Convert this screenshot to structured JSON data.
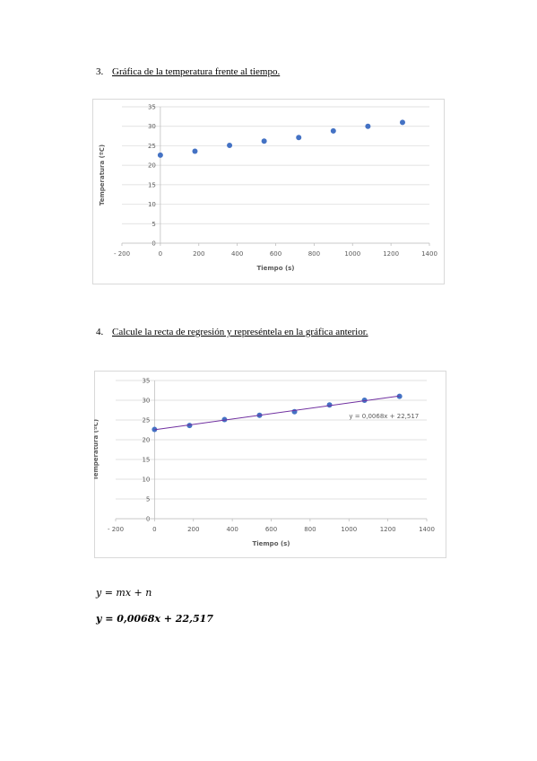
{
  "sections": [
    {
      "number": "3.",
      "heading": "Gráfica de la temperatura frente al tiempo."
    },
    {
      "number": "4.",
      "heading": "Calcule la recta de regresión y represéntela en la gráfica anterior."
    }
  ],
  "chart_data": [
    {
      "type": "scatter",
      "x_label": "Tiempo (s)",
      "y_label": "Temperatura (ºC)",
      "color": "#4472c4",
      "x": [
        0,
        180,
        360,
        540,
        720,
        900,
        1080,
        1260
      ],
      "values": [
        22.6,
        23.6,
        25.1,
        26.2,
        27.1,
        28.8,
        30.0,
        31.0
      ],
      "xlim": [
        -200,
        1400
      ],
      "xticks": [
        {
          "value": -200,
          "label": "- 200"
        },
        0,
        200,
        400,
        600,
        800,
        1000,
        1200,
        1400
      ],
      "ylim": [
        0,
        35
      ],
      "yticks": [
        0,
        5,
        10,
        15,
        20,
        25,
        30,
        35
      ],
      "grid": true
    },
    {
      "type": "scatter",
      "x_label": "Tiempo (s)",
      "y_label": "Temperatura (ºC)",
      "color": "#4472c4",
      "x": [
        0,
        180,
        360,
        540,
        720,
        900,
        1080,
        1260
      ],
      "values": [
        22.6,
        23.6,
        25.1,
        26.2,
        27.1,
        28.8,
        30.0,
        31.0
      ],
      "xlim": [
        -200,
        1400
      ],
      "xticks": [
        {
          "value": -200,
          "label": "- 200"
        },
        0,
        200,
        400,
        600,
        800,
        1000,
        1200,
        1400
      ],
      "ylim": [
        0,
        35
      ],
      "yticks": [
        0,
        5,
        10,
        15,
        20,
        25,
        30,
        35
      ],
      "grid": true,
      "trendline": {
        "slope": 0.0068,
        "intercept": 22.517,
        "color": "#7030a0",
        "label": "y = 0,0068x + 22,517"
      }
    }
  ],
  "equations": [
    "y = mx + n",
    "y = 0,0068x + 22,517"
  ]
}
